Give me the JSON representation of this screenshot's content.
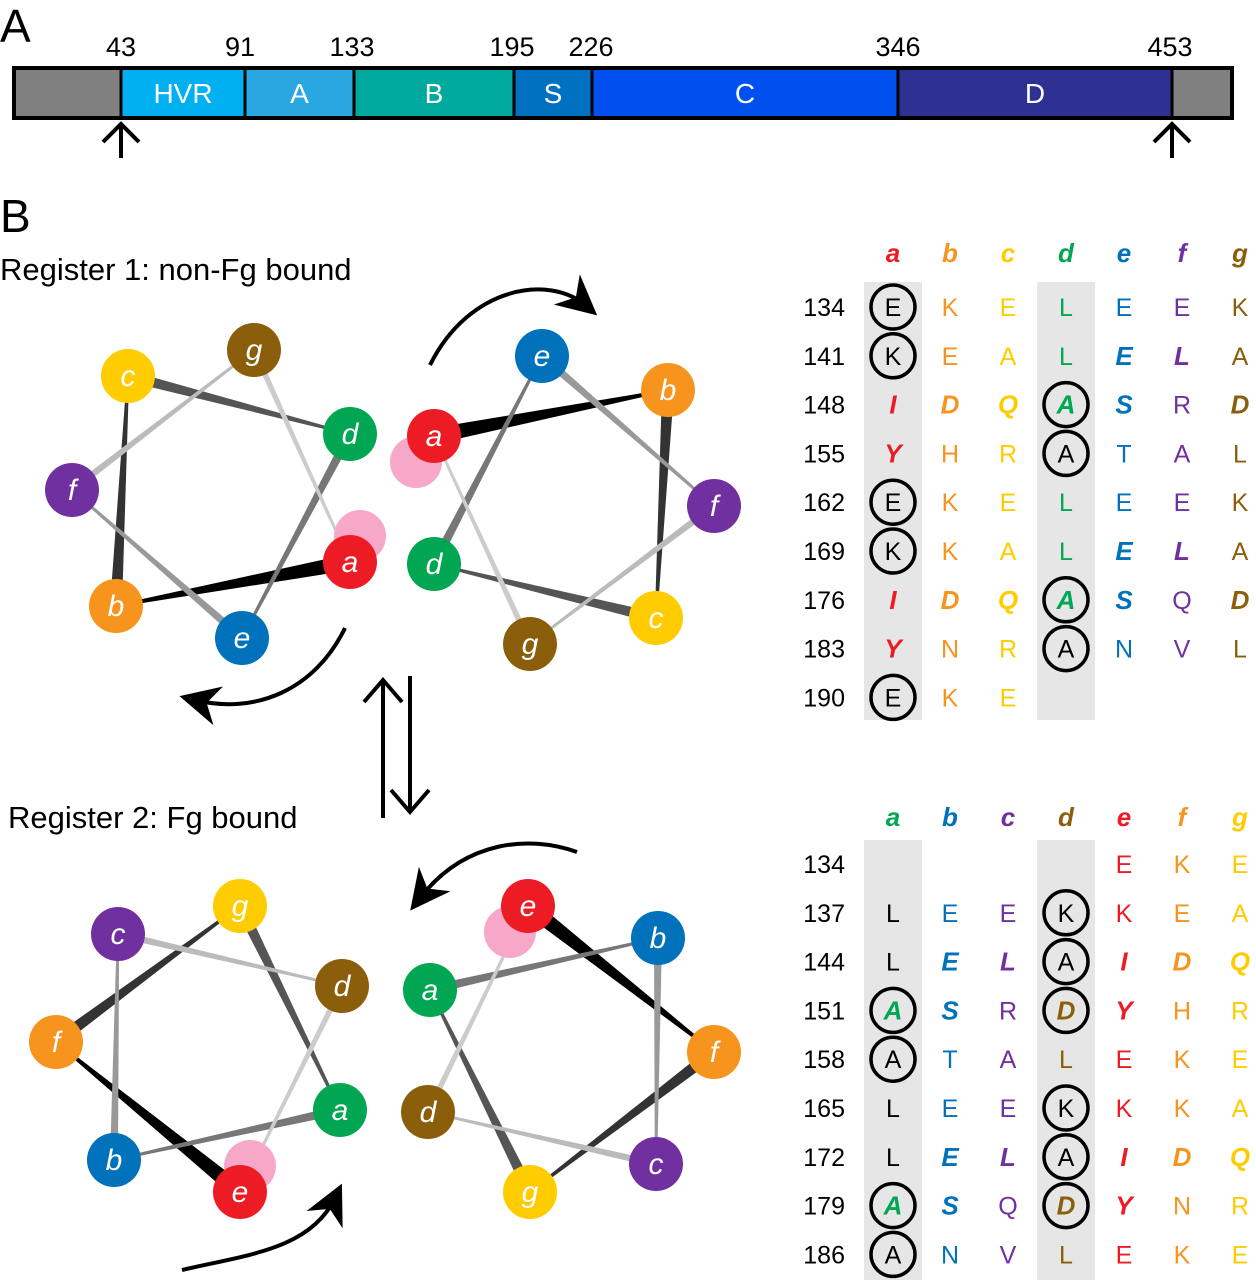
{
  "panel_a": {
    "label": "A",
    "positions": [
      "43",
      "91",
      "133",
      "195",
      "226",
      "346",
      "453"
    ],
    "segments": [
      {
        "label": "",
        "color": "#808080"
      },
      {
        "label": "HVR",
        "color": "#00b0f0"
      },
      {
        "label": "A",
        "color": "#29a7e1"
      },
      {
        "label": "B",
        "color": "#00a99d"
      },
      {
        "label": "S",
        "color": "#0070c0"
      },
      {
        "label": "C",
        "color": "#0050f0"
      },
      {
        "label": "D",
        "color": "#2e3192"
      },
      {
        "label": "",
        "color": "#808080"
      }
    ]
  },
  "panel_b": {
    "label": "B",
    "register1_label": "Register 1: non-Fg bound",
    "register2_label": "Register 2: Fg bound",
    "heptad_colors": {
      "a": "#ed1c24",
      "b": "#f7941d",
      "c": "#ffcc00",
      "d": "#00a651",
      "e": "#0072bc",
      "f": "#7030a0",
      "g": "#8b5e0b"
    },
    "register1_wheels": [
      {
        "nodes": [
          {
            "letter": "c",
            "color": "#ffcc00"
          },
          {
            "letter": "g",
            "color": "#8b5e0b"
          },
          {
            "letter": "d",
            "color": "#00a651"
          },
          {
            "letter": "f",
            "color": "#7030a0"
          },
          {
            "letter": "a",
            "color": "#ed1c24"
          },
          {
            "letter": "b",
            "color": "#f7941d"
          },
          {
            "letter": "e",
            "color": "#0072bc"
          }
        ]
      },
      {
        "nodes": [
          {
            "letter": "e",
            "color": "#0072bc"
          },
          {
            "letter": "b",
            "color": "#f7941d"
          },
          {
            "letter": "a",
            "color": "#ed1c24"
          },
          {
            "letter": "f",
            "color": "#7030a0"
          },
          {
            "letter": "d",
            "color": "#00a651"
          },
          {
            "letter": "c",
            "color": "#ffcc00"
          },
          {
            "letter": "g",
            "color": "#8b5e0b"
          }
        ]
      }
    ],
    "register2_wheels": [
      {
        "nodes": [
          {
            "letter": "c",
            "color": "#7030a0"
          },
          {
            "letter": "g",
            "color": "#ffcc00"
          },
          {
            "letter": "d",
            "color": "#8b5e0b"
          },
          {
            "letter": "f",
            "color": "#f7941d"
          },
          {
            "letter": "a",
            "color": "#00a651"
          },
          {
            "letter": "b",
            "color": "#0072bc"
          },
          {
            "letter": "e",
            "color": "#ed1c24"
          }
        ]
      },
      {
        "nodes": [
          {
            "letter": "e",
            "color": "#ed1c24"
          },
          {
            "letter": "b",
            "color": "#0072bc"
          },
          {
            "letter": "a",
            "color": "#00a651"
          },
          {
            "letter": "f",
            "color": "#f7941d"
          },
          {
            "letter": "d",
            "color": "#8b5e0b"
          },
          {
            "letter": "c",
            "color": "#7030a0"
          },
          {
            "letter": "g",
            "color": "#ffcc00"
          }
        ]
      }
    ],
    "table1": {
      "headers": [
        {
          "t": "a",
          "c": "#ed1c24"
        },
        {
          "t": "b",
          "c": "#f7941d"
        },
        {
          "t": "c",
          "c": "#ffcc00"
        },
        {
          "t": "d",
          "c": "#00a651"
        },
        {
          "t": "e",
          "c": "#0072bc"
        },
        {
          "t": "f",
          "c": "#7030a0"
        },
        {
          "t": "g",
          "c": "#8b5e0b"
        }
      ],
      "rows": [
        {
          "n": "134",
          "cells": [
            {
              "t": "E",
              "c": "#000",
              "o": 1
            },
            {
              "t": "K",
              "c": "#f7941d"
            },
            {
              "t": "E",
              "c": "#ffcc00"
            },
            {
              "t": "L",
              "c": "#00a651"
            },
            {
              "t": "E",
              "c": "#0072bc"
            },
            {
              "t": "E",
              "c": "#7030a0"
            },
            {
              "t": "K",
              "c": "#8b5e0b"
            }
          ]
        },
        {
          "n": "141",
          "cells": [
            {
              "t": "K",
              "c": "#000",
              "o": 1
            },
            {
              "t": "E",
              "c": "#f7941d"
            },
            {
              "t": "A",
              "c": "#ffcc00"
            },
            {
              "t": "L",
              "c": "#00a651"
            },
            {
              "t": "E",
              "c": "#0072bc",
              "b": 1
            },
            {
              "t": "L",
              "c": "#7030a0",
              "b": 1
            },
            {
              "t": "A",
              "c": "#8b5e0b"
            }
          ]
        },
        {
          "n": "148",
          "cells": [
            {
              "t": "I",
              "c": "#ed1c24",
              "b": 1
            },
            {
              "t": "D",
              "c": "#f7941d",
              "b": 1
            },
            {
              "t": "Q",
              "c": "#ffcc00",
              "b": 1
            },
            {
              "t": "A",
              "c": "#00a651",
              "b": 1,
              "o": 1
            },
            {
              "t": "S",
              "c": "#0072bc",
              "b": 1
            },
            {
              "t": "R",
              "c": "#7030a0"
            },
            {
              "t": "D",
              "c": "#8b5e0b",
              "b": 1
            }
          ]
        },
        {
          "n": "155",
          "cells": [
            {
              "t": "Y",
              "c": "#ed1c24",
              "b": 1
            },
            {
              "t": "H",
              "c": "#f7941d"
            },
            {
              "t": "R",
              "c": "#ffcc00"
            },
            {
              "t": "A",
              "c": "#000",
              "o": 1
            },
            {
              "t": "T",
              "c": "#0072bc"
            },
            {
              "t": "A",
              "c": "#7030a0"
            },
            {
              "t": "L",
              "c": "#8b5e0b"
            }
          ]
        },
        {
          "n": "162",
          "cells": [
            {
              "t": "E",
              "c": "#000",
              "o": 1
            },
            {
              "t": "K",
              "c": "#f7941d"
            },
            {
              "t": "E",
              "c": "#ffcc00"
            },
            {
              "t": "L",
              "c": "#00a651"
            },
            {
              "t": "E",
              "c": "#0072bc"
            },
            {
              "t": "E",
              "c": "#7030a0"
            },
            {
              "t": "K",
              "c": "#8b5e0b"
            }
          ]
        },
        {
          "n": "169",
          "cells": [
            {
              "t": "K",
              "c": "#000",
              "o": 1
            },
            {
              "t": "K",
              "c": "#f7941d"
            },
            {
              "t": "A",
              "c": "#ffcc00"
            },
            {
              "t": "L",
              "c": "#00a651"
            },
            {
              "t": "E",
              "c": "#0072bc",
              "b": 1
            },
            {
              "t": "L",
              "c": "#7030a0",
              "b": 1
            },
            {
              "t": "A",
              "c": "#8b5e0b"
            }
          ]
        },
        {
          "n": "176",
          "cells": [
            {
              "t": "I",
              "c": "#ed1c24",
              "b": 1
            },
            {
              "t": "D",
              "c": "#f7941d",
              "b": 1
            },
            {
              "t": "Q",
              "c": "#ffcc00",
              "b": 1
            },
            {
              "t": "A",
              "c": "#00a651",
              "b": 1,
              "o": 1
            },
            {
              "t": "S",
              "c": "#0072bc",
              "b": 1
            },
            {
              "t": "Q",
              "c": "#7030a0"
            },
            {
              "t": "D",
              "c": "#8b5e0b",
              "b": 1
            }
          ]
        },
        {
          "n": "183",
          "cells": [
            {
              "t": "Y",
              "c": "#ed1c24",
              "b": 1
            },
            {
              "t": "N",
              "c": "#f7941d"
            },
            {
              "t": "R",
              "c": "#ffcc00"
            },
            {
              "t": "A",
              "c": "#000",
              "o": 1
            },
            {
              "t": "N",
              "c": "#0072bc"
            },
            {
              "t": "V",
              "c": "#7030a0"
            },
            {
              "t": "L",
              "c": "#8b5e0b"
            }
          ]
        },
        {
          "n": "190",
          "cells": [
            {
              "t": "E",
              "c": "#000",
              "o": 1
            },
            {
              "t": "K",
              "c": "#f7941d"
            },
            {
              "t": "E",
              "c": "#ffcc00"
            },
            {
              "t": "",
              "c": "#000"
            },
            {
              "t": "",
              "c": "#000"
            },
            {
              "t": "",
              "c": "#000"
            },
            {
              "t": "",
              "c": "#000"
            }
          ]
        }
      ]
    },
    "table2": {
      "headers": [
        {
          "t": "a",
          "c": "#00a651"
        },
        {
          "t": "b",
          "c": "#0072bc"
        },
        {
          "t": "c",
          "c": "#7030a0"
        },
        {
          "t": "d",
          "c": "#8b5e0b"
        },
        {
          "t": "e",
          "c": "#ed1c24"
        },
        {
          "t": "f",
          "c": "#f7941d"
        },
        {
          "t": "g",
          "c": "#ffcc00"
        }
      ],
      "rows": [
        {
          "n": "134",
          "cells": [
            {
              "t": "",
              "c": "#000"
            },
            {
              "t": "",
              "c": "#000"
            },
            {
              "t": "",
              "c": "#000"
            },
            {
              "t": "",
              "c": "#000"
            },
            {
              "t": "E",
              "c": "#ed1c24"
            },
            {
              "t": "K",
              "c": "#f7941d"
            },
            {
              "t": "E",
              "c": "#ffcc00"
            }
          ]
        },
        {
          "n": "137",
          "cells": [
            {
              "t": "L",
              "c": "#000"
            },
            {
              "t": "E",
              "c": "#0072bc"
            },
            {
              "t": "E",
              "c": "#7030a0"
            },
            {
              "t": "K",
              "c": "#000",
              "o": 1
            },
            {
              "t": "K",
              "c": "#ed1c24"
            },
            {
              "t": "E",
              "c": "#f7941d"
            },
            {
              "t": "A",
              "c": "#ffcc00"
            }
          ]
        },
        {
          "n": "144",
          "cells": [
            {
              "t": "L",
              "c": "#000"
            },
            {
              "t": "E",
              "c": "#0072bc",
              "b": 1
            },
            {
              "t": "L",
              "c": "#7030a0",
              "b": 1
            },
            {
              "t": "A",
              "c": "#000",
              "o": 1
            },
            {
              "t": "I",
              "c": "#ed1c24",
              "b": 1
            },
            {
              "t": "D",
              "c": "#f7941d",
              "b": 1
            },
            {
              "t": "Q",
              "c": "#ffcc00",
              "b": 1
            }
          ]
        },
        {
          "n": "151",
          "cells": [
            {
              "t": "A",
              "c": "#00a651",
              "b": 1,
              "o": 1
            },
            {
              "t": "S",
              "c": "#0072bc",
              "b": 1
            },
            {
              "t": "R",
              "c": "#7030a0"
            },
            {
              "t": "D",
              "c": "#8b5e0b",
              "b": 1,
              "o": 1
            },
            {
              "t": "Y",
              "c": "#ed1c24",
              "b": 1
            },
            {
              "t": "H",
              "c": "#f7941d"
            },
            {
              "t": "R",
              "c": "#ffcc00"
            }
          ]
        },
        {
          "n": "158",
          "cells": [
            {
              "t": "A",
              "c": "#000",
              "o": 1
            },
            {
              "t": "T",
              "c": "#0072bc"
            },
            {
              "t": "A",
              "c": "#7030a0"
            },
            {
              "t": "L",
              "c": "#8b5e0b"
            },
            {
              "t": "E",
              "c": "#ed1c24"
            },
            {
              "t": "K",
              "c": "#f7941d"
            },
            {
              "t": "E",
              "c": "#ffcc00"
            }
          ]
        },
        {
          "n": "165",
          "cells": [
            {
              "t": "L",
              "c": "#000"
            },
            {
              "t": "E",
              "c": "#0072bc"
            },
            {
              "t": "E",
              "c": "#7030a0"
            },
            {
              "t": "K",
              "c": "#000",
              "o": 1
            },
            {
              "t": "K",
              "c": "#ed1c24"
            },
            {
              "t": "K",
              "c": "#f7941d"
            },
            {
              "t": "A",
              "c": "#ffcc00"
            }
          ]
        },
        {
          "n": "172",
          "cells": [
            {
              "t": "L",
              "c": "#000"
            },
            {
              "t": "E",
              "c": "#0072bc",
              "b": 1
            },
            {
              "t": "L",
              "c": "#7030a0",
              "b": 1
            },
            {
              "t": "A",
              "c": "#000",
              "o": 1
            },
            {
              "t": "I",
              "c": "#ed1c24",
              "b": 1
            },
            {
              "t": "D",
              "c": "#f7941d",
              "b": 1
            },
            {
              "t": "Q",
              "c": "#ffcc00",
              "b": 1
            }
          ]
        },
        {
          "n": "179",
          "cells": [
            {
              "t": "A",
              "c": "#00a651",
              "b": 1,
              "o": 1
            },
            {
              "t": "S",
              "c": "#0072bc",
              "b": 1
            },
            {
              "t": "Q",
              "c": "#7030a0"
            },
            {
              "t": "D",
              "c": "#8b5e0b",
              "b": 1,
              "o": 1
            },
            {
              "t": "Y",
              "c": "#ed1c24",
              "b": 1
            },
            {
              "t": "N",
              "c": "#f7941d"
            },
            {
              "t": "R",
              "c": "#ffcc00"
            }
          ]
        },
        {
          "n": "186",
          "cells": [
            {
              "t": "A",
              "c": "#000",
              "o": 1
            },
            {
              "t": "N",
              "c": "#0072bc"
            },
            {
              "t": "V",
              "c": "#7030a0"
            },
            {
              "t": "L",
              "c": "#8b5e0b"
            },
            {
              "t": "E",
              "c": "#ed1c24"
            },
            {
              "t": "K",
              "c": "#f7941d"
            },
            {
              "t": "E",
              "c": "#ffcc00"
            }
          ]
        }
      ]
    }
  }
}
